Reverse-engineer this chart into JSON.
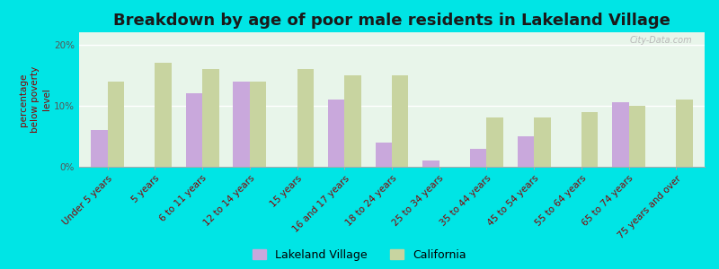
{
  "title": "Breakdown by age of poor male residents in Lakeland Village",
  "ylabel": "percentage\nbelow poverty\nlevel",
  "categories": [
    "Under 5 years",
    "5 years",
    "6 to 11 years",
    "12 to 14 years",
    "15 years",
    "16 and 17 years",
    "18 to 24 years",
    "25 to 34 years",
    "35 to 44 years",
    "45 to 54 years",
    "55 to 64 years",
    "65 to 74 years",
    "75 years and over"
  ],
  "lakeland_values": [
    6.0,
    0.0,
    12.0,
    14.0,
    0.0,
    11.0,
    4.0,
    1.0,
    3.0,
    5.0,
    0.0,
    10.5,
    0.0
  ],
  "california_values": [
    14.0,
    17.0,
    16.0,
    14.0,
    16.0,
    15.0,
    15.0,
    0.0,
    8.0,
    8.0,
    9.0,
    10.0,
    11.0
  ],
  "lakeland_color": "#c9a8dc",
  "california_color": "#c8d4a0",
  "background_color": "#e8f5ea",
  "outer_background": "#00e5e5",
  "ylim": [
    0,
    22
  ],
  "yticks": [
    0,
    10,
    20
  ],
  "ytick_labels": [
    "0%",
    "10%",
    "20%"
  ],
  "bar_width": 0.35,
  "legend_lakeland": "Lakeland Village",
  "legend_california": "California",
  "title_fontsize": 13,
  "ylabel_fontsize": 7.5,
  "tick_fontsize": 7.5,
  "legend_fontsize": 9,
  "watermark": "City-Data.com"
}
